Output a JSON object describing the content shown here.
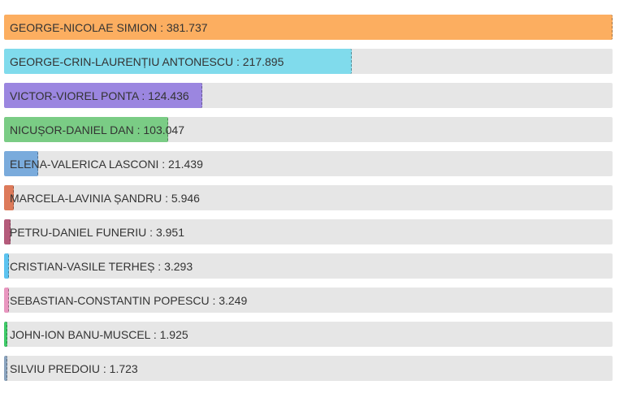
{
  "chart_data": {
    "type": "bar",
    "orientation": "horizontal",
    "grid": false,
    "legend": "none",
    "xlim": [
      0,
      381737
    ],
    "series": [
      {
        "categories": [
          "GEORGE-NICOLAE SIMION",
          "GEORGE-CRIN-LAURENȚIU ANTONESCU",
          "VICTOR-VIOREL PONTA",
          "NICUȘOR-DANIEL DAN",
          "ELENA-VALERICA LASCONI",
          "MARCELA-LAVINIA ȘANDRU",
          "PETRU-DANIEL FUNERIU",
          "CRISTIAN-VASILE TERHEȘ",
          "SEBASTIAN-CONSTANTIN POPESCU",
          "JOHN-ION BANU-MUSCEL",
          "SILVIU PREDOIU"
        ],
        "values": [
          381737,
          217895,
          124436,
          103047,
          21439,
          5946,
          3951,
          3293,
          3249,
          1925,
          1723
        ],
        "labels": [
          "GEORGE-NICOLAE SIMION : 381.737",
          "GEORGE-CRIN-LAURENȚIU ANTONESCU : 217.895",
          "VICTOR-VIOREL PONTA : 124.436",
          "NICUȘOR-DANIEL DAN : 103.047",
          "ELENA-VALERICA LASCONI : 21.439",
          "MARCELA-LAVINIA ȘANDRU : 5.946",
          "PETRU-DANIEL FUNERIU : 3.951",
          "CRISTIAN-VASILE TERHEȘ : 3.293",
          "SEBASTIAN-CONSTANTIN POPESCU : 3.249",
          "JOHN-ION BANU-MUSCEL : 1.925",
          "SILVIU PREDOIU : 1.723"
        ],
        "colors": [
          "#fcae60",
          "#80dbec",
          "#9b86e0",
          "#7acc85",
          "#7aabdc",
          "#dd7a5a",
          "#b55b7b",
          "#5cc3f0",
          "#e997c0",
          "#3fc968",
          "#8aa3be"
        ]
      }
    ],
    "track_color": "#e6e6e6"
  }
}
